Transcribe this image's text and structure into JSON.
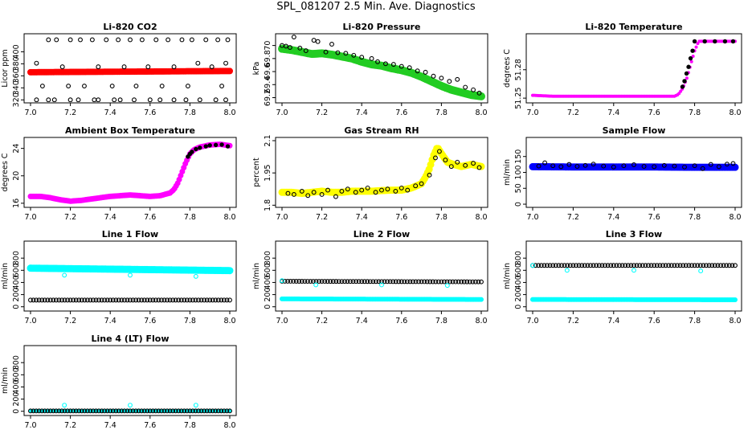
{
  "page_title": "SPL_081207  2.5 Min. Ave. Diagnostics",
  "colors": {
    "red": "#ff0000",
    "green": "#22cc22",
    "magenta": "#ff00ff",
    "yellow": "#ffff00",
    "blue": "#0000ff",
    "cyan": "#00ffff",
    "black": "#000000"
  },
  "chart_data": [
    {
      "id": "co2",
      "type": "scatter",
      "title": "Li-820 CO2",
      "ylabel": "Licor ppm",
      "xlim": [
        7.0,
        8.0
      ],
      "xticks": [
        "7.0",
        "7.2",
        "7.4",
        "7.6",
        "7.8",
        "8.0"
      ],
      "ylim": [
        315,
        430
      ],
      "yticks": [
        320,
        340,
        360,
        380,
        400
      ],
      "series": [
        {
          "name": "co2-average",
          "color": "red",
          "style": "band",
          "x": [
            7.0,
            7.5,
            8.0
          ],
          "y": [
            366,
            367,
            368
          ],
          "width": 8
        },
        {
          "name": "co2-scan-high",
          "color": "black",
          "style": "open-circles",
          "x": [
            7.09,
            7.13,
            7.2,
            7.25,
            7.31,
            7.38,
            7.44,
            7.5,
            7.56,
            7.63,
            7.69,
            7.76,
            7.81,
            7.88,
            7.94,
            7.99
          ],
          "y": [
            420,
            420,
            420,
            420,
            420,
            420,
            420,
            420,
            420,
            420,
            420,
            420,
            420,
            420,
            420,
            420
          ]
        },
        {
          "name": "co2-scan-mid",
          "color": "black",
          "style": "open-circles",
          "x": [
            7.03,
            7.06,
            7.16,
            7.19,
            7.27,
            7.34,
            7.41,
            7.47,
            7.53,
            7.59,
            7.66,
            7.72,
            7.79,
            7.84,
            7.91,
            7.96,
            7.98
          ],
          "y": [
            381,
            343,
            375,
            343,
            343,
            375,
            343,
            375,
            343,
            375,
            343,
            375,
            343,
            381,
            375,
            343,
            381
          ]
        },
        {
          "name": "co2-scan-low",
          "color": "black",
          "style": "open-circles",
          "x": [
            7.03,
            7.09,
            7.12,
            7.2,
            7.24,
            7.32,
            7.34,
            7.42,
            7.45,
            7.52,
            7.6,
            7.65,
            7.72,
            7.78,
            7.85,
            7.93,
            7.98
          ],
          "y": [
            320,
            320,
            320,
            320,
            320,
            320,
            320,
            320,
            320,
            320,
            320,
            320,
            320,
            320,
            320,
            320,
            320
          ]
        }
      ]
    },
    {
      "id": "pressure",
      "type": "scatter",
      "title": "Li-820 Pressure",
      "ylabel": "kPa",
      "xlim": [
        7.0,
        8.0
      ],
      "xticks": [
        "7.0",
        "7.2",
        "7.4",
        "7.6",
        "7.8",
        "8.0"
      ],
      "ylim": [
        69.12,
        70.18
      ],
      "yticks": [
        69.2,
        69.4,
        69.6,
        69.8,
        70.0
      ],
      "series": [
        {
          "name": "pressure-average",
          "color": "green",
          "style": "band",
          "x": [
            7.0,
            7.05,
            7.1,
            7.15,
            7.2,
            7.25,
            7.3,
            7.35,
            7.4,
            7.45,
            7.5,
            7.55,
            7.6,
            7.65,
            7.7,
            7.75,
            7.8,
            7.85,
            7.9,
            7.95,
            8.0
          ],
          "y": [
            69.95,
            69.93,
            69.9,
            69.87,
            69.88,
            69.86,
            69.83,
            69.8,
            69.75,
            69.71,
            69.69,
            69.65,
            69.62,
            69.58,
            69.52,
            69.45,
            69.38,
            69.32,
            69.28,
            69.24,
            69.22
          ],
          "width": 10
        },
        {
          "name": "pressure-samples",
          "color": "black",
          "style": "open-circles",
          "x": [
            7.0,
            7.02,
            7.04,
            7.06,
            7.09,
            7.12,
            7.16,
            7.18,
            7.22,
            7.25,
            7.28,
            7.32,
            7.36,
            7.4,
            7.45,
            7.48,
            7.52,
            7.56,
            7.6,
            7.64,
            7.68,
            7.72,
            7.76,
            7.8,
            7.84,
            7.88,
            7.92,
            7.96,
            7.99
          ],
          "y": [
            70.0,
            69.99,
            69.97,
            70.13,
            69.96,
            69.92,
            70.08,
            70.06,
            69.9,
            70.02,
            69.89,
            69.88,
            69.85,
            69.82,
            69.8,
            69.75,
            69.72,
            69.71,
            69.68,
            69.66,
            69.61,
            69.59,
            69.53,
            69.5,
            69.45,
            69.48,
            69.36,
            69.32,
            69.27
          ]
        }
      ]
    },
    {
      "id": "licor-temp",
      "type": "scatter",
      "title": "Li-820 Temperature",
      "ylabel": "degrees C",
      "xlim": [
        7.0,
        8.0
      ],
      "xticks": [
        "7.0",
        "7.2",
        "7.4",
        "7.6",
        "7.8",
        "8.0"
      ],
      "ylim": [
        51.245,
        51.318
      ],
      "yticks": [
        51.25,
        51.28
      ],
      "series": [
        {
          "name": "licor-temp-average",
          "color": "magenta",
          "style": "band",
          "x": [
            7.0,
            7.1,
            7.2,
            7.3,
            7.4,
            7.5,
            7.6,
            7.7,
            7.72,
            7.74,
            7.76,
            7.78,
            7.8,
            7.82,
            8.0
          ],
          "y": [
            51.253,
            51.252,
            51.252,
            51.252,
            51.252,
            51.252,
            51.252,
            51.252,
            51.254,
            51.26,
            51.27,
            51.285,
            51.3,
            51.31,
            51.31
          ],
          "width": 4
        },
        {
          "name": "licor-temp-samples",
          "color": "black",
          "style": "filled-dots",
          "x": [
            7.74,
            7.75,
            7.76,
            7.77,
            7.78,
            7.79,
            7.8,
            7.85,
            7.9,
            7.95,
            7.99
          ],
          "y": [
            51.262,
            51.268,
            51.276,
            51.283,
            51.292,
            51.3,
            51.31,
            51.31,
            51.31,
            51.31,
            51.31
          ]
        }
      ]
    },
    {
      "id": "box-temp",
      "type": "scatter",
      "title": "Ambient Box Temperature",
      "ylabel": "degrees C",
      "xlim": [
        7.0,
        8.0
      ],
      "xticks": [
        "7.0",
        "7.2",
        "7.4",
        "7.6",
        "7.8",
        "8.0"
      ],
      "ylim": [
        15.4,
        25.6
      ],
      "yticks": [
        16,
        20,
        24
      ],
      "series": [
        {
          "name": "box-temp-average",
          "color": "magenta",
          "style": "band",
          "x": [
            7.0,
            7.05,
            7.1,
            7.15,
            7.2,
            7.25,
            7.3,
            7.35,
            7.4,
            7.45,
            7.5,
            7.55,
            7.6,
            7.65,
            7.7,
            7.72,
            7.74,
            7.76,
            7.78,
            7.8,
            7.82,
            7.85,
            7.9,
            7.95,
            8.0
          ],
          "y": [
            17.0,
            17.0,
            16.8,
            16.5,
            16.3,
            16.4,
            16.6,
            16.8,
            17.0,
            17.1,
            17.2,
            17.1,
            17.0,
            17.1,
            17.5,
            18.0,
            19.0,
            20.5,
            22.0,
            23.2,
            23.8,
            24.2,
            24.5,
            24.6,
            24.4
          ],
          "width": 7
        },
        {
          "name": "box-temp-samples",
          "color": "black",
          "style": "filled-dots",
          "x": [
            7.79,
            7.8,
            7.81,
            7.83,
            7.85,
            7.88,
            7.9,
            7.93,
            7.96,
            7.99
          ],
          "y": [
            22.8,
            23.2,
            23.5,
            23.9,
            24.1,
            24.3,
            24.45,
            24.5,
            24.55,
            24.3
          ]
        }
      ]
    },
    {
      "id": "rh",
      "type": "scatter",
      "title": "Gas Stream RH",
      "ylabel": "percent",
      "xlim": [
        7.0,
        8.0
      ],
      "xticks": [
        "7.0",
        "7.2",
        "7.4",
        "7.6",
        "7.8",
        "8.0"
      ],
      "ylim": [
        1.79,
        2.115
      ],
      "yticks": [
        1.8,
        1.95,
        2.1
      ],
      "series": [
        {
          "name": "rh-average",
          "color": "yellow",
          "style": "band",
          "x": [
            7.0,
            7.05,
            7.1,
            7.15,
            7.2,
            7.25,
            7.3,
            7.35,
            7.4,
            7.45,
            7.5,
            7.55,
            7.6,
            7.65,
            7.7,
            7.72,
            7.74,
            7.76,
            7.78,
            7.8,
            7.83,
            7.86,
            7.9,
            7.95,
            8.0
          ],
          "y": [
            1.86,
            1.86,
            1.855,
            1.86,
            1.865,
            1.86,
            1.86,
            1.865,
            1.865,
            1.865,
            1.868,
            1.87,
            1.87,
            1.88,
            1.9,
            1.93,
            1.97,
            2.03,
            2.07,
            2.04,
            2.0,
            1.99,
            1.98,
            1.99,
            1.98
          ],
          "width": 9
        },
        {
          "name": "rh-samples",
          "color": "black",
          "style": "open-circles",
          "x": [
            7.03,
            7.06,
            7.1,
            7.13,
            7.16,
            7.2,
            7.23,
            7.27,
            7.3,
            7.33,
            7.37,
            7.4,
            7.43,
            7.47,
            7.5,
            7.53,
            7.57,
            7.6,
            7.63,
            7.67,
            7.7,
            7.74,
            7.77,
            7.79,
            7.82,
            7.85,
            7.88,
            7.92,
            7.96,
            7.99
          ],
          "y": [
            1.855,
            1.85,
            1.865,
            1.845,
            1.86,
            1.85,
            1.87,
            1.84,
            1.865,
            1.875,
            1.86,
            1.87,
            1.88,
            1.86,
            1.87,
            1.875,
            1.865,
            1.88,
            1.87,
            1.89,
            1.9,
            1.94,
            2.02,
            2.05,
            2.01,
            1.98,
            2.0,
            1.985,
            1.995,
            1.975
          ]
        }
      ]
    },
    {
      "id": "sample-flow",
      "type": "scatter",
      "title": "Sample Flow",
      "ylabel": "ml/min",
      "xlim": [
        7.0,
        8.0
      ],
      "xticks": [
        "7.0",
        "7.2",
        "7.4",
        "7.6",
        "7.8",
        "8.0"
      ],
      "ylim": [
        -10,
        210
      ],
      "yticks": [
        0,
        50,
        100,
        150
      ],
      "series": [
        {
          "name": "sample-flow-average",
          "color": "blue",
          "style": "band",
          "x": [
            7.0,
            7.2,
            7.4,
            7.6,
            7.8,
            8.0
          ],
          "y": [
            118,
            117,
            117,
            117,
            116,
            116
          ],
          "width": 9
        },
        {
          "name": "sample-flow-samples",
          "color": "black",
          "style": "open-circles",
          "x": [
            7.03,
            7.06,
            7.1,
            7.14,
            7.18,
            7.22,
            7.26,
            7.3,
            7.35,
            7.4,
            7.45,
            7.5,
            7.55,
            7.6,
            7.65,
            7.7,
            7.75,
            7.8,
            7.84,
            7.88,
            7.92,
            7.96,
            7.99
          ],
          "y": [
            120,
            130,
            121,
            118,
            125,
            119,
            122,
            126,
            120,
            117,
            121,
            124,
            119,
            118,
            122,
            120,
            117,
            121,
            112,
            125,
            118,
            126,
            128
          ]
        }
      ]
    },
    {
      "id": "line1-flow",
      "type": "scatter",
      "title": "Line 1 Flow",
      "ylabel": "ml/min",
      "xlim": [
        7.0,
        8.0
      ],
      "xticks": [
        "7.0",
        "7.2",
        "7.4",
        "7.6",
        "7.8",
        "8.0"
      ],
      "ylim": [
        -70,
        1080
      ],
      "yticks": [
        0,
        200,
        400,
        600,
        800
      ],
      "series": [
        {
          "name": "line1-high",
          "color": "cyan",
          "style": "band",
          "x": [
            7.0,
            8.0
          ],
          "y": [
            635,
            595
          ],
          "width": 9
        },
        {
          "name": "line1-high-outliers",
          "color": "cyan",
          "style": "open-circles",
          "x": [
            7.17,
            7.5,
            7.83
          ],
          "y": [
            520,
            520,
            500
          ]
        },
        {
          "name": "line1-low",
          "color": "black",
          "style": "open-circles-dense",
          "x": [
            7.0,
            8.0
          ],
          "y": [
            110,
            110
          ]
        }
      ]
    },
    {
      "id": "line2-flow",
      "type": "scatter",
      "title": "Line 2 Flow",
      "ylabel": "ml/min",
      "xlim": [
        7.0,
        8.0
      ],
      "xticks": [
        "7.0",
        "7.2",
        "7.4",
        "7.6",
        "7.8",
        "8.0"
      ],
      "ylim": [
        -70,
        1080
      ],
      "yticks": [
        0,
        200,
        400,
        600,
        800
      ],
      "series": [
        {
          "name": "line2-low",
          "color": "cyan",
          "style": "band",
          "x": [
            7.0,
            8.0
          ],
          "y": [
            130,
            120
          ],
          "width": 6
        },
        {
          "name": "line2-high",
          "color": "black",
          "style": "open-circles-dense",
          "x": [
            7.0,
            8.0
          ],
          "y": [
            420,
            410
          ]
        },
        {
          "name": "line2-outliers",
          "color": "cyan",
          "style": "open-circles",
          "x": [
            7.0,
            7.17,
            7.5,
            7.83
          ],
          "y": [
            430,
            360,
            360,
            350
          ]
        }
      ]
    },
    {
      "id": "line3-flow",
      "type": "scatter",
      "title": "Line 3 Flow",
      "ylabel": "ml/min",
      "xlim": [
        7.0,
        8.0
      ],
      "xticks": [
        "7.0",
        "7.2",
        "7.4",
        "7.6",
        "7.8",
        "8.0"
      ],
      "ylim": [
        -70,
        1080
      ],
      "yticks": [
        0,
        200,
        400,
        600,
        800
      ],
      "series": [
        {
          "name": "line3-low",
          "color": "cyan",
          "style": "band",
          "x": [
            7.0,
            8.0
          ],
          "y": [
            120,
            115
          ],
          "width": 6
        },
        {
          "name": "line3-high",
          "color": "black",
          "style": "open-circles-dense",
          "x": [
            7.0,
            8.0
          ],
          "y": [
            680,
            680
          ]
        },
        {
          "name": "line3-outliers",
          "color": "cyan",
          "style": "open-circles",
          "x": [
            7.0,
            7.17,
            7.5,
            7.83
          ],
          "y": [
            680,
            600,
            600,
            590
          ]
        }
      ]
    },
    {
      "id": "line4-flow",
      "type": "scatter",
      "title": "Line 4 (LT) Flow",
      "ylabel": "ml/min",
      "xlim": [
        7.0,
        8.0
      ],
      "xticks": [
        "7.0",
        "7.2",
        "7.4",
        "7.6",
        "7.8",
        "8.0"
      ],
      "ylim": [
        -70,
        1080
      ],
      "yticks": [
        0,
        200,
        400,
        600,
        800
      ],
      "series": [
        {
          "name": "line4-band",
          "color": "cyan",
          "style": "band",
          "x": [
            7.0,
            8.0
          ],
          "y": [
            5,
            5
          ],
          "width": 4
        },
        {
          "name": "line4-samples",
          "color": "black",
          "style": "open-circles-dense",
          "x": [
            7.0,
            8.0
          ],
          "y": [
            5,
            5
          ]
        },
        {
          "name": "line4-outliers",
          "color": "cyan",
          "style": "open-circles",
          "x": [
            7.17,
            7.5,
            7.83
          ],
          "y": [
            100,
            100,
            100
          ]
        }
      ]
    }
  ]
}
